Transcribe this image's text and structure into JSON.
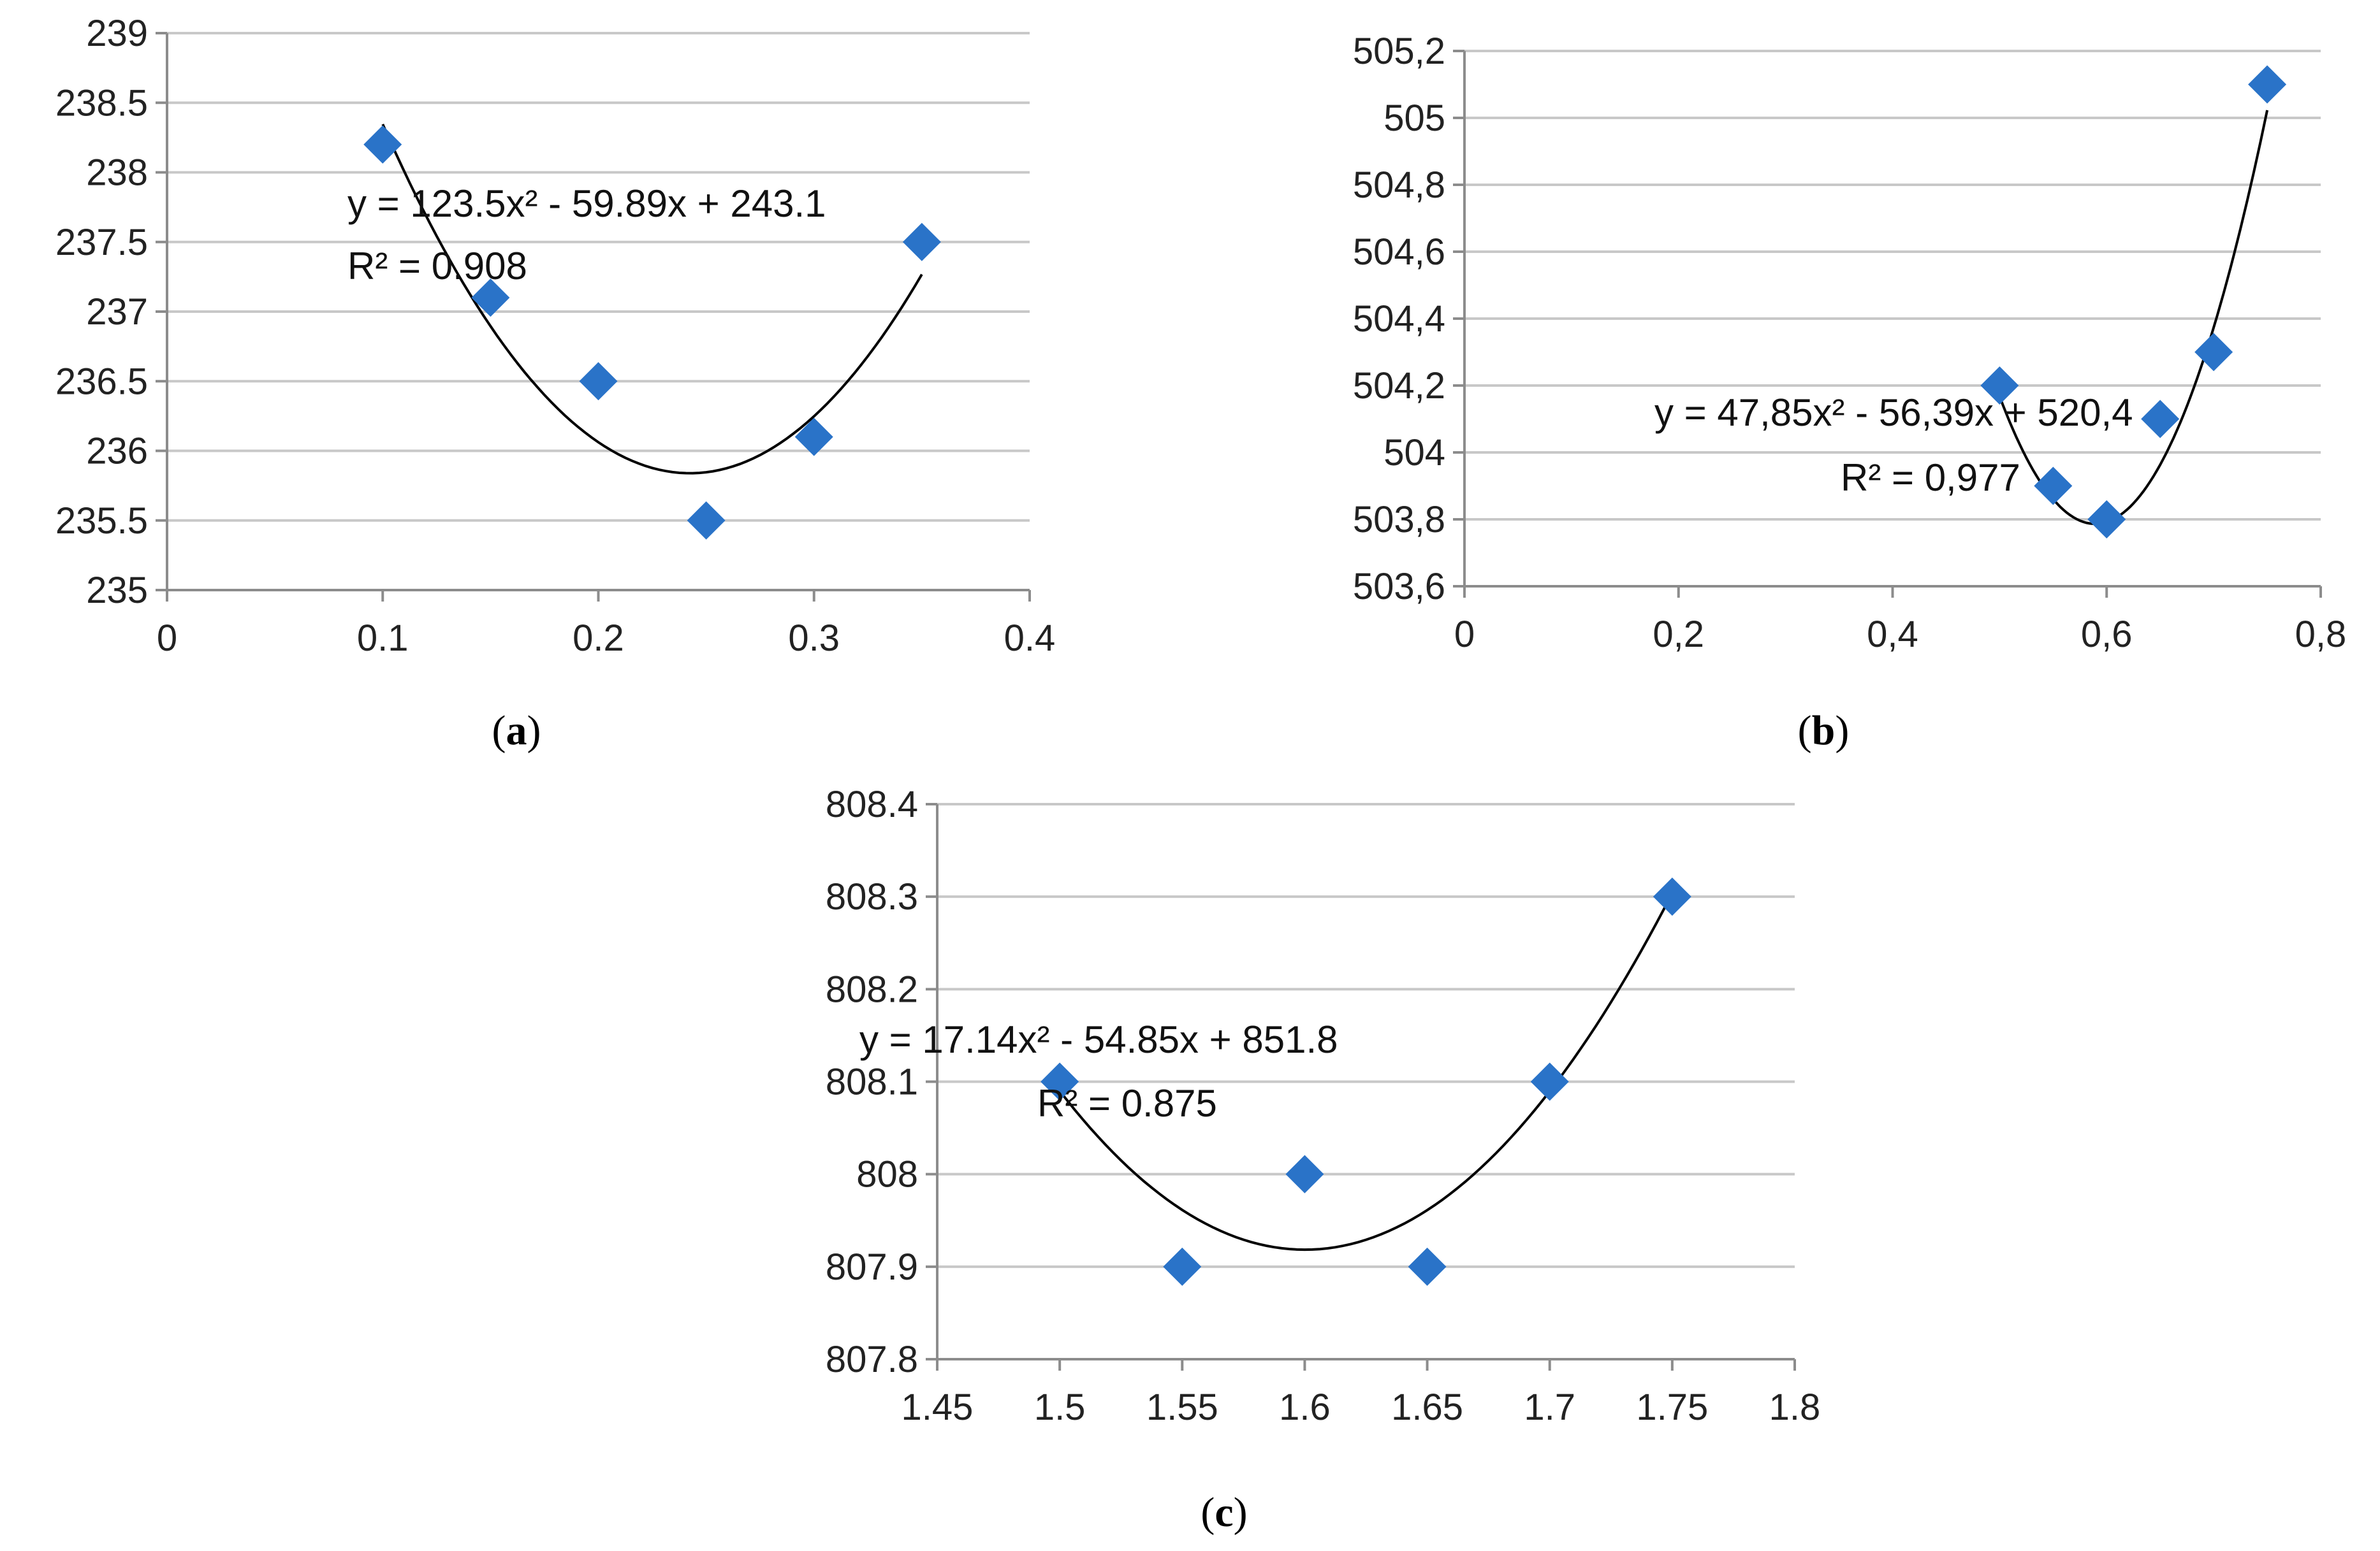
{
  "chart_data": [
    {
      "type": "scatter",
      "panel_label": "a",
      "x": [
        0.1,
        0.15,
        0.2,
        0.25,
        0.3,
        0.35
      ],
      "y": [
        238.2,
        237.1,
        236.5,
        235.5,
        236.1,
        237.5
      ],
      "xlim": [
        0,
        0.4
      ],
      "ylim": [
        235,
        239
      ],
      "x_ticks": [
        "0",
        "0.1",
        "0.2",
        "0.3",
        "0.4"
      ],
      "y_ticks": [
        "235",
        "235.5",
        "236",
        "236.5",
        "237",
        "237.5",
        "238",
        "238.5",
        "239"
      ],
      "trendline": {
        "type": "polynomial-2",
        "coefficients": [
          123.5,
          -59.89,
          243.1
        ],
        "x_range": [
          0.1,
          0.35
        ],
        "equation": "y = 123.5x² - 59.89x + 243.1",
        "r2": "R² = 0.908"
      },
      "grid": true,
      "marker_color": "#2A73C8"
    },
    {
      "type": "scatter",
      "panel_label": "b",
      "x": [
        0.5,
        0.55,
        0.6,
        0.65,
        0.7,
        0.75
      ],
      "y": [
        504.2,
        503.9,
        503.8,
        504.1,
        504.3,
        505.1
      ],
      "xlim": [
        0,
        0.8
      ],
      "ylim": [
        503.6,
        505.2
      ],
      "x_ticks": [
        "0",
        "0,2",
        "0,4",
        "0,6",
        "0,8"
      ],
      "y_ticks": [
        "503,6",
        "503,8",
        "504",
        "504,2",
        "504,4",
        "504,6",
        "504,8",
        "505",
        "505,2"
      ],
      "trendline": {
        "type": "polynomial-2",
        "coefficients": [
          47.85,
          -56.39,
          520.4
        ],
        "x_range": [
          0.5,
          0.75
        ],
        "equation": "y = 47,85x² - 56,39x + 520,4",
        "r2": "R² = 0,977"
      },
      "grid": true,
      "marker_color": "#2A73C8"
    },
    {
      "type": "scatter",
      "panel_label": "c",
      "x": [
        1.5,
        1.55,
        1.6,
        1.65,
        1.7,
        1.75
      ],
      "y": [
        808.1,
        807.9,
        808.0,
        807.9,
        808.1,
        808.3
      ],
      "xlim": [
        1.45,
        1.8
      ],
      "ylim": [
        807.8,
        808.4
      ],
      "x_ticks": [
        "1.45",
        "1.5",
        "1.55",
        "1.6",
        "1.65",
        "1.7",
        "1.75",
        "1.8"
      ],
      "y_ticks": [
        "807.8",
        "807.9",
        "808",
        "808.1",
        "808.2",
        "808.3",
        "808.4"
      ],
      "trendline": {
        "type": "polynomial-2",
        "coefficients": [
          17.14,
          -54.85,
          851.8
        ],
        "x_range": [
          1.5,
          1.75
        ],
        "equation": "y = 17.14x² - 54.85x + 851.8",
        "r2": "R² = 0.875"
      },
      "grid": true,
      "marker_color": "#2A73C8"
    }
  ]
}
